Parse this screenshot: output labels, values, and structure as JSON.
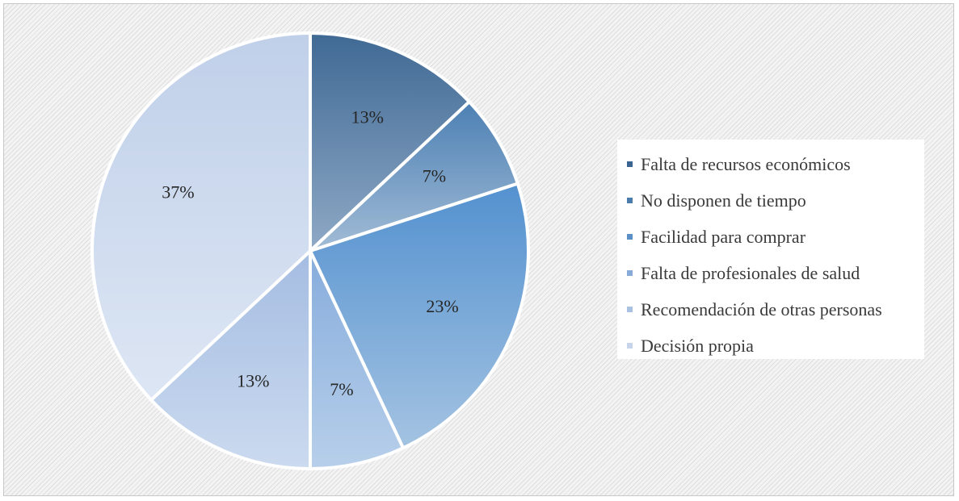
{
  "chart_data": {
    "type": "pie",
    "title": "",
    "legend_position": "right",
    "start_angle_deg": 0,
    "direction": "clockwise",
    "slices": [
      {
        "label": "Falta de recursos económicos",
        "value": 13,
        "display": "13%",
        "color_top": "#3f6994",
        "color_bottom": "#8fa9c6"
      },
      {
        "label": "No disponen de tiempo",
        "value": 7,
        "display": "7%",
        "color_top": "#4c80b4",
        "color_bottom": "#a2bcd6"
      },
      {
        "label": "Facilidad para comprar",
        "value": 23,
        "display": "23%",
        "color_top": "#5391cf",
        "color_bottom": "#a4c3e2"
      },
      {
        "label": "Falta de profesionales de salud",
        "value": 7,
        "display": "7%",
        "color_top": "#86acdc",
        "color_bottom": "#b7cfea"
      },
      {
        "label": "Recomendación de otras personas",
        "value": 13,
        "display": "13%",
        "color_top": "#a5bde2",
        "color_bottom": "#cbdaef"
      },
      {
        "label": "Decisión propia",
        "value": 37,
        "display": "37%",
        "color_top": "#c0d0e9",
        "color_bottom": "#dde6f4"
      }
    ],
    "legend_colors": [
      "#3b6590",
      "#4a7dae",
      "#5a8fc8",
      "#86abd8",
      "#a9c1e3",
      "#c6d5ec"
    ]
  }
}
